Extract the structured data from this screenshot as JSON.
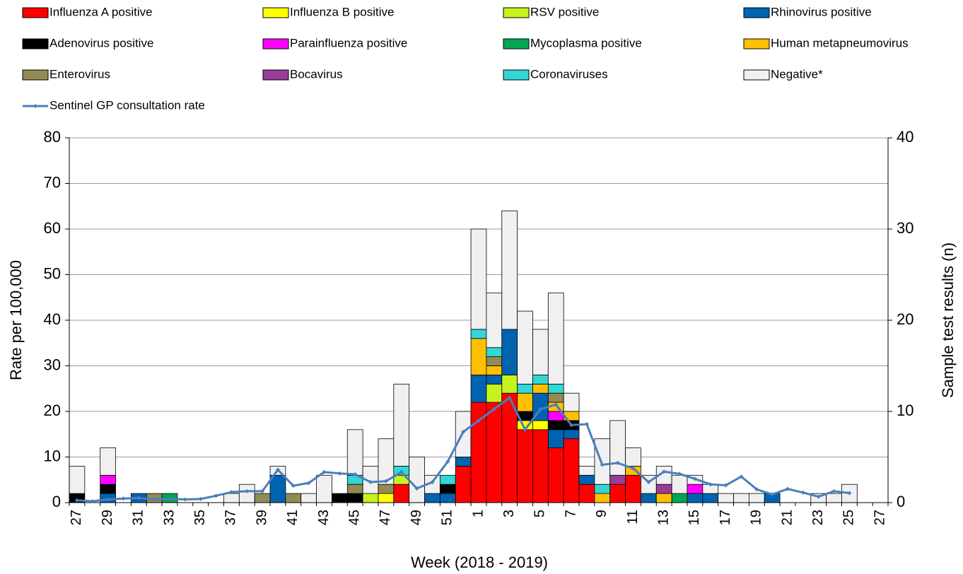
{
  "chart_data": {
    "type": "bar",
    "x_label": "Week (2018 - 2019)",
    "y_label": "Rate per 100,000",
    "y2_label": "Sample test results (n)",
    "categories": [
      "27",
      null,
      "29",
      null,
      "31",
      null,
      "33",
      null,
      "35",
      null,
      "37",
      null,
      "39",
      null,
      "41",
      null,
      "43",
      null,
      "45",
      null,
      "47",
      null,
      "49",
      null,
      "51",
      null,
      "1",
      null,
      "3",
      null,
      "5",
      null,
      "7",
      null,
      "9",
      null,
      "11",
      null,
      "13",
      null,
      "15",
      null,
      "17",
      null,
      "19",
      null,
      "21",
      null,
      "23",
      null,
      "25",
      null,
      "27"
    ],
    "ylim": [
      0,
      80
    ],
    "yticks": [
      0,
      10,
      20,
      30,
      40,
      50,
      60,
      70,
      80
    ],
    "y2lim": [
      0,
      40
    ],
    "y2ticks": [
      0,
      10,
      20,
      30,
      40
    ],
    "grid": true,
    "legend": "top",
    "series": [
      {
        "name": "Influenza A positive",
        "color": "#ff0000",
        "axis": "y2",
        "values": [
          0,
          0,
          0,
          0,
          0,
          0,
          0,
          0,
          0,
          0,
          0,
          0,
          0,
          0,
          0,
          0,
          0,
          0,
          0,
          0,
          0,
          2,
          0,
          0,
          0,
          4,
          11,
          11,
          12,
          8,
          8,
          6,
          7,
          2,
          0,
          2,
          3,
          0,
          0,
          0,
          0,
          0,
          0,
          0,
          0,
          0,
          0,
          0,
          0,
          0,
          0,
          0,
          0
        ]
      },
      {
        "name": "Influenza B positive",
        "color": "#ffff00",
        "axis": "y2",
        "values": [
          0,
          0,
          0,
          0,
          0,
          0,
          0,
          0,
          0,
          0,
          0,
          0,
          0,
          0,
          0,
          0,
          0,
          0,
          0,
          0,
          1,
          0,
          0,
          0,
          0,
          0,
          0,
          0,
          0,
          1,
          1,
          0,
          0,
          0,
          0,
          0,
          0,
          0,
          0,
          0,
          0,
          0,
          0,
          0,
          0,
          0,
          0,
          0,
          0,
          0,
          0,
          0,
          0
        ]
      },
      {
        "name": "RSV positive",
        "color": "#c6f21d",
        "axis": "y2",
        "values": [
          0,
          0,
          0,
          0,
          0,
          0,
          0,
          0,
          0,
          0,
          0,
          0,
          0,
          0,
          0,
          0,
          0,
          0,
          0,
          1,
          0,
          1,
          0,
          0,
          0,
          0,
          0,
          2,
          2,
          0,
          0,
          0,
          0,
          0,
          0,
          0,
          0,
          0,
          0,
          0,
          0,
          0,
          0,
          0,
          0,
          0,
          0,
          0,
          0,
          0,
          0,
          0,
          0
        ]
      },
      {
        "name": "Rhinovirus positive",
        "color": "#0063b0",
        "axis": "y2",
        "values": [
          0,
          0,
          1,
          0,
          1,
          0,
          0,
          0,
          0,
          0,
          0,
          0,
          0,
          3,
          0,
          0,
          0,
          0,
          0,
          0,
          0,
          0,
          0,
          1,
          1,
          1,
          3,
          1,
          5,
          0,
          3,
          2,
          1,
          1,
          0,
          0,
          0,
          1,
          0,
          0,
          1,
          1,
          0,
          0,
          0,
          1,
          0,
          0,
          0,
          0,
          0,
          0,
          0
        ]
      },
      {
        "name": "Adenovirus positive",
        "color": "#000000",
        "axis": "y2",
        "values": [
          1,
          0,
          1,
          0,
          0,
          0,
          0,
          0,
          0,
          0,
          0,
          0,
          0,
          0,
          0,
          0,
          0,
          1,
          1,
          0,
          0,
          0,
          0,
          0,
          1,
          0,
          0,
          0,
          0,
          1,
          0,
          1,
          1,
          0,
          0,
          0,
          0,
          0,
          0,
          0,
          0,
          0,
          0,
          0,
          0,
          0,
          0,
          0,
          0,
          0,
          0,
          0,
          0
        ]
      },
      {
        "name": "Parainfluenza positive",
        "color": "#ff00ff",
        "axis": "y2",
        "values": [
          0,
          0,
          1,
          0,
          0,
          0,
          0,
          0,
          0,
          0,
          0,
          0,
          0,
          0,
          0,
          0,
          0,
          0,
          0,
          0,
          0,
          0,
          0,
          0,
          0,
          0,
          0,
          0,
          0,
          0,
          0,
          1,
          0,
          0,
          0,
          0,
          0,
          0,
          0,
          0,
          1,
          0,
          0,
          0,
          0,
          0,
          0,
          0,
          0,
          0,
          0,
          0,
          0
        ]
      },
      {
        "name": "Mycoplasma positive",
        "color": "#00a651",
        "axis": "y2",
        "values": [
          0,
          0,
          0,
          0,
          0,
          0,
          1,
          0,
          0,
          0,
          0,
          0,
          0,
          0,
          0,
          0,
          0,
          0,
          0,
          0,
          0,
          0,
          0,
          0,
          0,
          0,
          0,
          0,
          0,
          0,
          0,
          0,
          0,
          0,
          0,
          0,
          0,
          0,
          0,
          1,
          0,
          0,
          0,
          0,
          0,
          0,
          0,
          0,
          0,
          0,
          0,
          0,
          0
        ]
      },
      {
        "name": "Human metapneumovirus",
        "color": "#ffc000",
        "axis": "y2",
        "values": [
          0,
          0,
          0,
          0,
          0,
          0,
          0,
          0,
          0,
          0,
          0,
          0,
          0,
          0,
          0,
          0,
          0,
          0,
          0,
          0,
          0,
          0,
          0,
          0,
          0,
          0,
          4,
          1,
          0,
          2,
          1,
          1,
          1,
          0,
          1,
          0,
          1,
          0,
          1,
          0,
          0,
          0,
          0,
          0,
          0,
          0,
          0,
          0,
          0,
          0,
          0,
          0,
          0
        ]
      },
      {
        "name": "Enterovirus",
        "color": "#948a54",
        "axis": "y2",
        "values": [
          0,
          0,
          0,
          0,
          0,
          1,
          0,
          0,
          0,
          0,
          0,
          0,
          1,
          0,
          1,
          0,
          0,
          0,
          1,
          0,
          1,
          0,
          0,
          0,
          0,
          0,
          0,
          1,
          0,
          0,
          0,
          1,
          0,
          0,
          0,
          0,
          0,
          0,
          0,
          0,
          0,
          0,
          0,
          0,
          0,
          0,
          0,
          0,
          0,
          0,
          0,
          0,
          0
        ]
      },
      {
        "name": "Bocavirus",
        "color": "#993d99",
        "axis": "y2",
        "values": [
          0,
          0,
          0,
          0,
          0,
          0,
          0,
          0,
          0,
          0,
          0,
          0,
          0,
          0,
          0,
          0,
          0,
          0,
          0,
          0,
          0,
          0,
          0,
          0,
          0,
          0,
          0,
          0,
          0,
          0,
          0,
          0,
          0,
          0,
          0,
          1,
          0,
          0,
          1,
          0,
          0,
          0,
          0,
          0,
          0,
          0,
          0,
          0,
          0,
          0,
          0,
          0,
          0
        ]
      },
      {
        "name": "Coronaviruses",
        "color": "#33d6d6",
        "axis": "y2",
        "values": [
          0,
          0,
          0,
          0,
          0,
          0,
          0,
          0,
          0,
          0,
          0,
          0,
          0,
          0,
          0,
          0,
          0,
          0,
          1,
          0,
          0,
          1,
          0,
          0,
          1,
          0,
          1,
          1,
          0,
          1,
          1,
          1,
          0,
          0,
          1,
          0,
          0,
          0,
          0,
          0,
          0,
          0,
          0,
          0,
          0,
          0,
          0,
          0,
          0,
          0,
          0,
          0,
          0
        ]
      },
      {
        "name": "Negative*",
        "color": "#f0f0f0",
        "axis": "y2",
        "values": [
          3,
          0,
          3,
          0,
          0,
          0,
          0,
          0,
          0,
          0,
          1,
          2,
          0,
          1,
          0,
          1,
          3,
          0,
          5,
          3,
          5,
          9,
          5,
          2,
          0,
          5,
          11,
          6,
          13,
          8,
          5,
          10,
          2,
          1,
          5,
          6,
          2,
          2,
          2,
          2,
          1,
          1,
          1,
          1,
          1,
          0,
          0,
          0,
          1,
          1,
          2,
          0,
          0
        ]
      }
    ],
    "line": {
      "name": "Sentinel GP consultation rate",
      "color": "#4a7ebb",
      "values": [
        0.5,
        0.3,
        0.7,
        0.9,
        1.0,
        0.7,
        0.8,
        0.7,
        0.8,
        1.5,
        2.3,
        2.5,
        2.5,
        7.2,
        3.7,
        4.3,
        6.7,
        6.4,
        6.2,
        4.5,
        4.7,
        6.7,
        3.1,
        4.5,
        9,
        15.5,
        18,
        20.5,
        23,
        16,
        20.5,
        21.5,
        17,
        17.2,
        8.3,
        8.7,
        7.5,
        4.5,
        6.8,
        6.3,
        5.2,
        4,
        3.8,
        5.7,
        2.9,
        1.8,
        3,
        2.2,
        1.3,
        2.5,
        2.1,
        null,
        null
      ]
    }
  }
}
